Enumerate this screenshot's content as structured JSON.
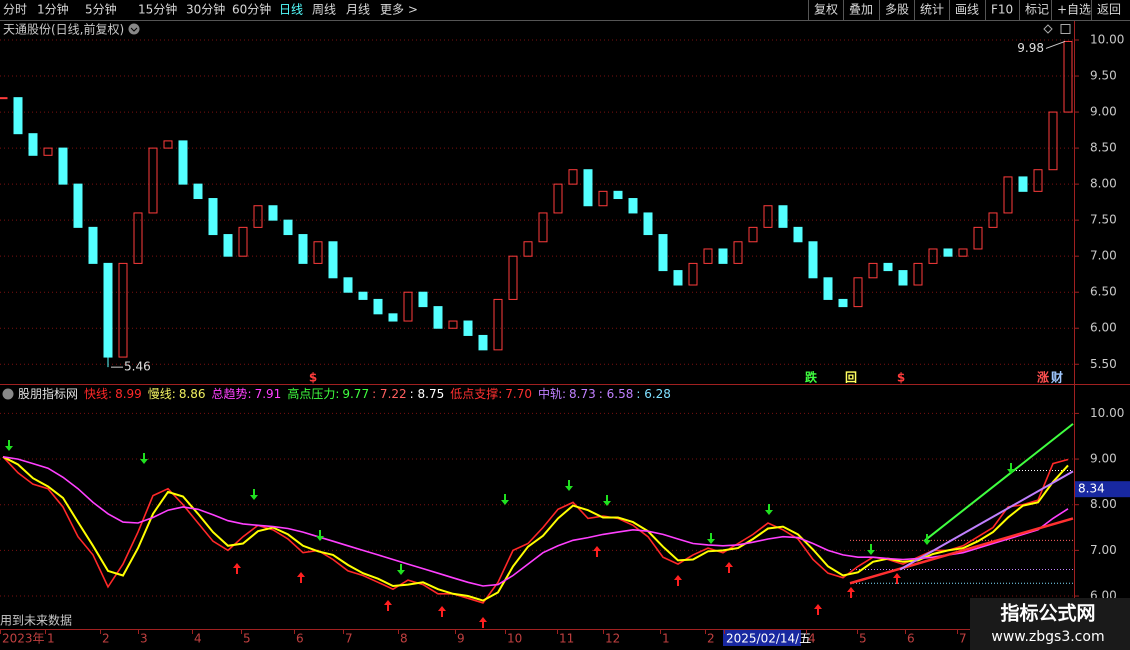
{
  "toolbar": {
    "periods": [
      "分时",
      "1分钟",
      "5分钟",
      "15分钟",
      "30分钟",
      "60分钟",
      "日线",
      "周线",
      "月线",
      "更多 >"
    ],
    "active": 6,
    "buttons": [
      "复权",
      "叠加",
      "多股",
      "统计",
      "画线",
      "F10",
      "标记",
      "+自选",
      "返回"
    ]
  },
  "chart_data": [
    {
      "type": "candlestick",
      "title": "天通股份(日线,前复权)",
      "up_color": "#ff3c3c",
      "down_color": "#54ffff",
      "grid": true,
      "values": [
        9.2,
        8.7,
        8.4,
        8.5,
        8.0,
        7.4,
        6.9,
        5.6,
        6.9,
        7.6,
        8.5,
        8.6,
        8.0,
        7.8,
        7.3,
        7.0,
        7.4,
        7.7,
        7.5,
        7.3,
        6.9,
        7.2,
        6.7,
        6.5,
        6.4,
        6.2,
        6.1,
        6.5,
        6.3,
        6.0,
        6.1,
        5.9,
        5.7,
        6.4,
        7.0,
        7.2,
        7.6,
        8.0,
        8.2,
        7.7,
        7.9,
        7.8,
        7.6,
        7.3,
        6.8,
        6.6,
        6.9,
        7.1,
        6.9,
        7.2,
        7.4,
        7.7,
        7.4,
        7.2,
        6.7,
        6.4,
        6.3,
        6.7,
        6.9,
        6.8,
        6.6,
        6.9,
        7.1,
        7.0,
        7.1,
        7.4,
        7.6,
        8.1,
        7.9,
        8.2,
        9.0,
        9.98
      ],
      "high": 9.98,
      "low": 5.46,
      "ylim": [
        5.24,
        10.25
      ],
      "yticks": [
        {
          "value": 5.5,
          "label": "5.50"
        },
        {
          "value": 6,
          "label": "6.00"
        },
        {
          "value": 6.5,
          "label": "6.50"
        },
        {
          "value": 7,
          "label": "7.00"
        },
        {
          "value": 7.5,
          "label": "7.50"
        },
        {
          "value": 8,
          "label": "8.00"
        },
        {
          "value": 8.5,
          "label": "8.50"
        },
        {
          "value": 9,
          "label": "9.00"
        },
        {
          "value": 9.5,
          "label": "9.50"
        },
        {
          "value": 10,
          "label": "10.00"
        }
      ],
      "event_markers": [
        {
          "text": "$",
          "color": "#ff3c3c"
        },
        {
          "text": "跌",
          "color": "#40ff40"
        },
        {
          "text": "回",
          "color": "#ffff60"
        },
        {
          "text": "$",
          "color": "#ff3c3c"
        },
        {
          "text": "涨",
          "color": "#ff5050"
        },
        {
          "text": "财",
          "color": "#a0c8ff"
        }
      ]
    },
    {
      "type": "line",
      "title": "股朋指标网",
      "grid": true,
      "series": [
        {
          "name": "快线:",
          "color": "#ff2828",
          "legend_value": 8.99,
          "values": [
            9.05,
            8.7,
            8.45,
            8.35,
            7.95,
            7.3,
            6.9,
            6.2,
            6.7,
            7.4,
            8.2,
            8.35,
            8.0,
            7.6,
            7.2,
            7.0,
            7.3,
            7.55,
            7.45,
            7.25,
            6.95,
            7.0,
            6.8,
            6.55,
            6.45,
            6.3,
            6.15,
            6.35,
            6.25,
            6.05,
            6.05,
            5.95,
            5.85,
            6.3,
            7.0,
            7.15,
            7.5,
            7.9,
            8.05,
            7.7,
            7.75,
            7.7,
            7.55,
            7.3,
            6.85,
            6.7,
            6.9,
            7.05,
            6.95,
            7.15,
            7.35,
            7.6,
            7.45,
            7.25,
            6.8,
            6.5,
            6.4,
            6.65,
            6.85,
            6.8,
            6.7,
            6.85,
            7.0,
            7.0,
            7.1,
            7.3,
            7.5,
            7.95,
            8.0,
            8.1,
            8.9,
            8.99
          ]
        },
        {
          "name": "慢线:",
          "color": "#ffff00",
          "legend_value": 8.86,
          "values": [
            9.05,
            8.88,
            8.58,
            8.4,
            8.15,
            7.62,
            7.1,
            6.55,
            6.45,
            7.05,
            7.8,
            8.28,
            8.18,
            7.8,
            7.4,
            7.1,
            7.15,
            7.42,
            7.5,
            7.35,
            7.1,
            6.98,
            6.9,
            6.68,
            6.5,
            6.38,
            6.22,
            6.25,
            6.3,
            6.15,
            6.05,
            6.0,
            5.9,
            6.08,
            6.65,
            7.08,
            7.32,
            7.7,
            7.98,
            7.88,
            7.72,
            7.72,
            7.62,
            7.42,
            7.08,
            6.78,
            6.8,
            6.98,
            7.0,
            7.05,
            7.25,
            7.48,
            7.52,
            7.35,
            7.02,
            6.65,
            6.45,
            6.52,
            6.75,
            6.82,
            6.75,
            6.78,
            6.92,
            7.0,
            7.05,
            7.2,
            7.4,
            7.72,
            7.98,
            8.05,
            8.5,
            8.86
          ]
        },
        {
          "name": "总趋势:",
          "color": "#ff40ff",
          "legend_value": 7.91,
          "values": [
            9.05,
            9.0,
            8.9,
            8.8,
            8.6,
            8.35,
            8.05,
            7.8,
            7.62,
            7.6,
            7.72,
            7.88,
            7.95,
            7.9,
            7.78,
            7.65,
            7.58,
            7.55,
            7.52,
            7.48,
            7.4,
            7.3,
            7.2,
            7.1,
            7.0,
            6.9,
            6.8,
            6.7,
            6.6,
            6.5,
            6.4,
            6.3,
            6.22,
            6.25,
            6.45,
            6.7,
            6.95,
            7.1,
            7.22,
            7.28,
            7.35,
            7.4,
            7.45,
            7.42,
            7.35,
            7.25,
            7.15,
            7.12,
            7.1,
            7.12,
            7.18,
            7.25,
            7.3,
            7.28,
            7.15,
            7.0,
            6.9,
            6.85,
            6.85,
            6.82,
            6.8,
            6.82,
            6.85,
            6.9,
            6.95,
            7.05,
            7.15,
            7.25,
            7.35,
            7.45,
            7.7,
            7.91
          ]
        }
      ],
      "levels": [
        {
          "name": "高点压力:",
          "name_color": "#40ff40",
          "colors": [
            "#40ff40",
            "#ff6060",
            "#ffffff"
          ],
          "values": [
            9.77,
            7.22,
            8.75
          ],
          "value_labels": [
            "9.77",
            ": 7.22",
            ": 8.75"
          ]
        },
        {
          "name": "低点支撑:",
          "name_color": "#ff3030",
          "colors": [
            "#ff3030"
          ],
          "values": [
            7.7
          ],
          "value_labels": [
            "7.70"
          ]
        },
        {
          "name": "中轨:",
          "name_color": "#c080ff",
          "colors": [
            "#c080ff",
            "#c080ff",
            "#80e0ff"
          ],
          "values": [
            8.73,
            6.58,
            6.28
          ],
          "value_labels": [
            "8.73",
            ": 6.58",
            ": 6.28"
          ]
        }
      ],
      "cursor_value": 8.34,
      "note": "用到未来数据",
      "ylim": [
        5.3,
        10.6
      ],
      "yticks": [
        {
          "value": 6,
          "label": "6.00"
        },
        {
          "value": 7,
          "label": "7.00"
        },
        {
          "value": 8,
          "label": "8.00"
        },
        {
          "value": 9,
          "label": "9.00"
        },
        {
          "value": 10,
          "label": "10.00"
        }
      ],
      "x_labels": [
        "2023年",
        "1",
        "2",
        "3",
        "4",
        "5",
        "6",
        "7",
        "8",
        "9",
        "10",
        "11",
        "12",
        "1",
        "2",
        "2025/02/14/五",
        "4",
        "5",
        "6",
        "7"
      ]
    }
  ],
  "watermark": {
    "title": "指标公式网",
    "url": "www.zbgs3.com"
  }
}
